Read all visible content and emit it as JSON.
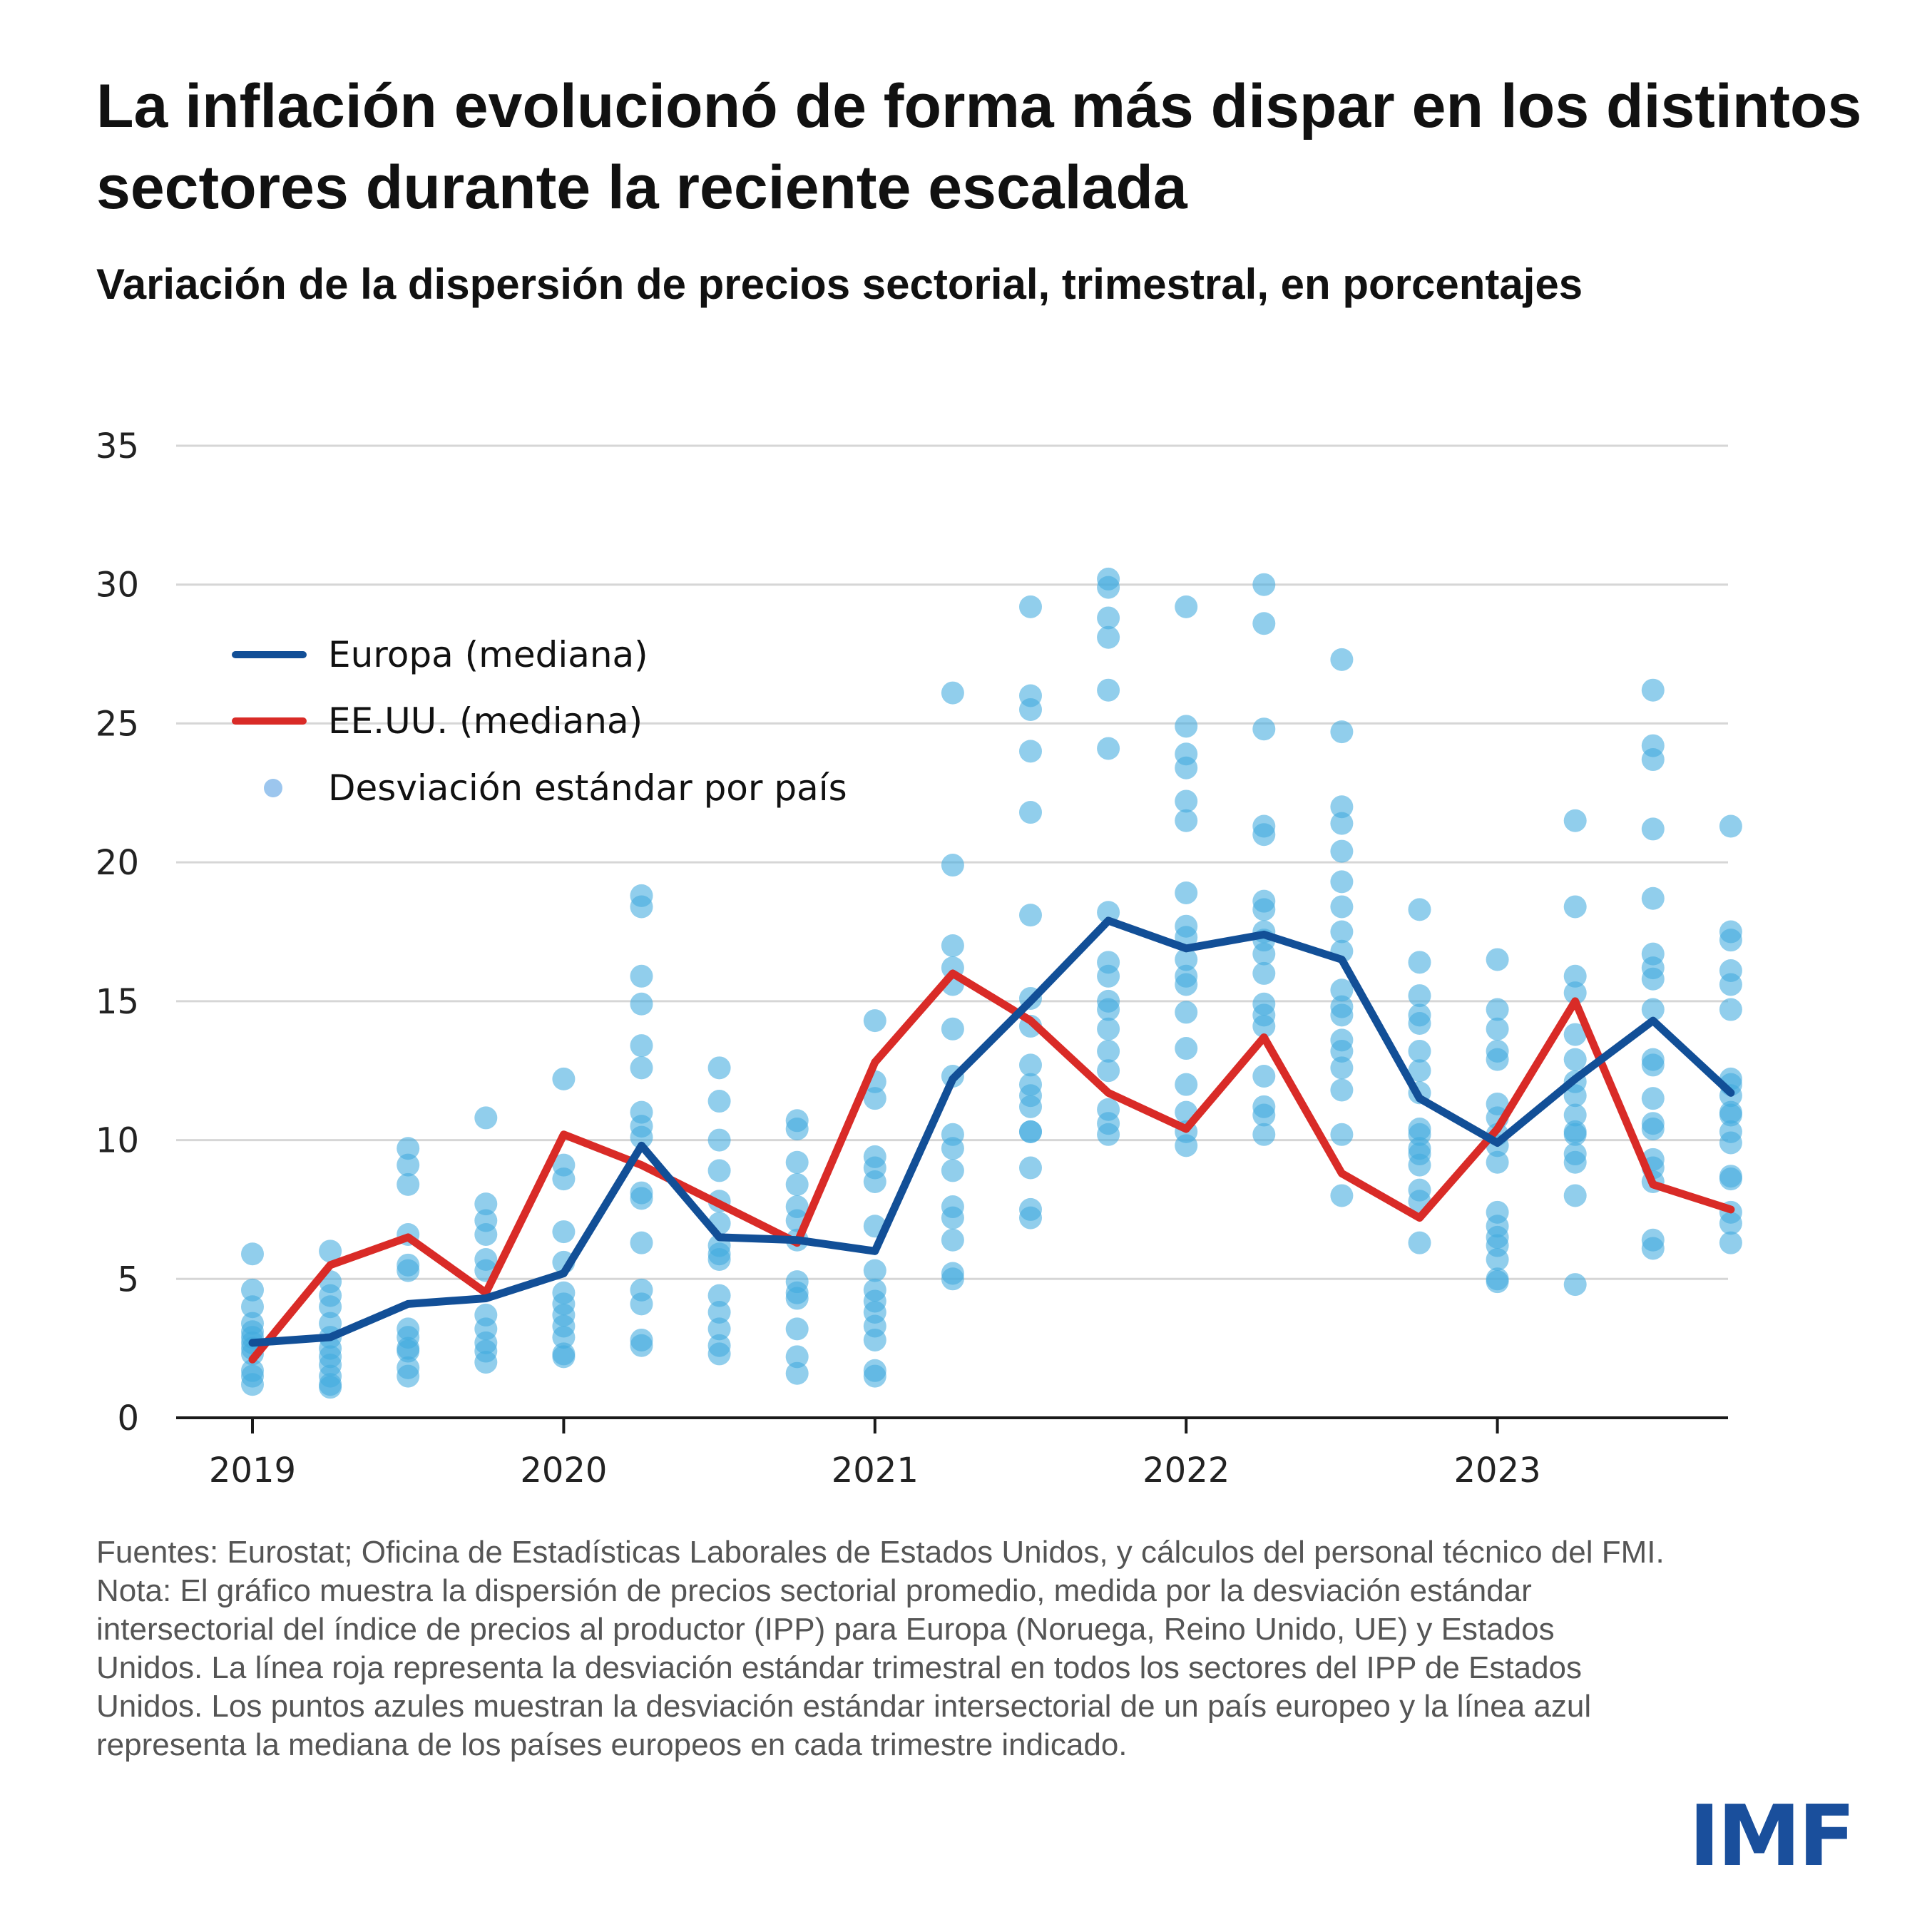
{
  "title": "La inflación evolucionó de forma más dispar en los distintos sectores durante la reciente escalada",
  "subtitle": "Variación de la dispersión de precios sectorial, trimestral, en porcentajes",
  "colors": {
    "europe": "#124f97",
    "us": "#d92b27",
    "dots": "#41aadf",
    "grid": "#d6d6d6",
    "logo": "#1a4f9c"
  },
  "chart_data": {
    "type": "line",
    "x_tick_labels": [
      "2019",
      "2020",
      "2021",
      "2022",
      "2023"
    ],
    "x": [
      "2019T1",
      "2019T2",
      "2019T3",
      "2019T4",
      "2020T1",
      "2020T2",
      "2020T3",
      "2020T4",
      "2021T1",
      "2021T2",
      "2021T3",
      "2021T4",
      "2022T1",
      "2022T2",
      "2022T3",
      "2022T4",
      "2023T1",
      "2023T2",
      "2023T3",
      "2023T4"
    ],
    "ylim": [
      0,
      35
    ],
    "y_ticks": [
      "0",
      "5",
      "10",
      "15",
      "20",
      "25",
      "30",
      "35"
    ],
    "grid": true,
    "legend_placement": "top-left",
    "series": [
      {
        "name": "Europa (mediana)",
        "type": "line",
        "values": [
          2.7,
          2.9,
          4.1,
          4.3,
          5.2,
          9.8,
          6.5,
          6.4,
          6.0,
          12.2,
          15.0,
          17.9,
          16.9,
          17.4,
          16.5,
          11.5,
          9.9,
          12.2,
          14.3,
          11.7
        ]
      },
      {
        "name": "EE.UU. (mediana)",
        "type": "line",
        "values": [
          2.1,
          5.5,
          6.5,
          4.5,
          10.2,
          9.1,
          7.7,
          6.3,
          12.8,
          16.0,
          14.3,
          11.7,
          10.4,
          13.7,
          8.8,
          7.2,
          10.4,
          15.0,
          8.4,
          7.5
        ]
      },
      {
        "name": "Desviación estándar por país",
        "type": "scatter",
        "values": [
          [
            5.9,
            4.6,
            4.0,
            3.4,
            3.1,
            2.9,
            2.7,
            2.5,
            2.3,
            1.7,
            1.5,
            1.2
          ],
          [
            6.0,
            4.9,
            4.4,
            4.0,
            3.4,
            2.9,
            2.5,
            2.2,
            1.9,
            1.5,
            1.2,
            1.1
          ],
          [
            9.7,
            9.1,
            8.4,
            6.6,
            5.5,
            5.3,
            3.2,
            2.9,
            2.5,
            2.4,
            1.8,
            1.5
          ],
          [
            10.8,
            7.7,
            7.1,
            6.6,
            5.7,
            5.3,
            3.7,
            3.2,
            2.7,
            2.4,
            2.0
          ],
          [
            12.2,
            9.1,
            8.6,
            6.7,
            5.6,
            4.5,
            4.1,
            3.7,
            3.3,
            2.9,
            2.3,
            2.2
          ],
          [
            18.8,
            18.4,
            15.9,
            14.9,
            13.4,
            12.6,
            11.0,
            10.5,
            10.1,
            8.1,
            7.9,
            6.3,
            4.6,
            4.1,
            2.8,
            2.6
          ],
          [
            12.6,
            11.4,
            10.0,
            8.9,
            7.8,
            7.0,
            6.2,
            5.9,
            5.7,
            4.4,
            3.8,
            3.2,
            2.6,
            2.3
          ],
          [
            10.7,
            10.4,
            9.2,
            8.4,
            7.6,
            7.1,
            6.4,
            4.9,
            4.5,
            4.3,
            3.2,
            2.2,
            1.6
          ],
          [
            14.3,
            12.1,
            11.5,
            9.4,
            9.0,
            8.5,
            6.9,
            5.3,
            4.6,
            4.2,
            3.8,
            3.3,
            2.8,
            1.7,
            1.5
          ],
          [
            26.1,
            19.9,
            17.0,
            16.2,
            15.6,
            14.0,
            12.3,
            10.2,
            9.7,
            8.9,
            7.6,
            7.2,
            6.4,
            5.2,
            5.0
          ],
          [
            29.2,
            26.0,
            25.5,
            24.0,
            21.8,
            18.1,
            15.1,
            14.1,
            12.7,
            12.0,
            11.6,
            11.2,
            10.3,
            10.3,
            9.0,
            7.5,
            7.2
          ],
          [
            30.2,
            29.9,
            28.8,
            28.1,
            26.2,
            24.1,
            18.2,
            16.4,
            15.9,
            15.0,
            14.7,
            14.0,
            13.2,
            12.5,
            11.1,
            10.6,
            10.2
          ],
          [
            29.2,
            24.9,
            23.9,
            23.4,
            22.2,
            21.5,
            18.9,
            17.7,
            17.3,
            16.5,
            15.9,
            15.6,
            14.6,
            13.3,
            12.0,
            11.0,
            10.3,
            9.8
          ],
          [
            30.0,
            28.6,
            24.8,
            21.3,
            21.0,
            18.6,
            18.3,
            17.5,
            17.2,
            16.7,
            16.0,
            14.9,
            14.5,
            14.1,
            12.3,
            11.2,
            10.9,
            10.2
          ],
          [
            27.3,
            24.7,
            22.0,
            21.4,
            20.4,
            19.3,
            18.4,
            17.5,
            16.8,
            15.4,
            14.8,
            14.5,
            13.6,
            13.2,
            12.6,
            11.8,
            10.2,
            8.0
          ],
          [
            18.3,
            16.4,
            15.2,
            14.5,
            14.2,
            13.2,
            12.5,
            11.7,
            10.4,
            10.2,
            9.7,
            9.5,
            9.1,
            8.2,
            7.8,
            6.3
          ],
          [
            16.5,
            14.7,
            14.0,
            13.2,
            12.9,
            11.3,
            10.8,
            10.2,
            9.8,
            9.2,
            7.4,
            6.9,
            6.5,
            6.2,
            5.7,
            5.0,
            4.9
          ],
          [
            21.5,
            18.4,
            15.9,
            15.3,
            13.8,
            12.9,
            12.1,
            11.6,
            10.9,
            10.3,
            10.2,
            9.5,
            9.2,
            8.0,
            4.8
          ],
          [
            26.2,
            24.2,
            23.7,
            21.2,
            18.7,
            16.7,
            16.2,
            15.8,
            14.7,
            12.9,
            12.7,
            11.5,
            10.6,
            10.4,
            9.3,
            9.0,
            8.5,
            6.4,
            6.1
          ],
          [
            21.3,
            17.5,
            17.2,
            16.1,
            15.6,
            14.7,
            12.2,
            12.0,
            11.6,
            11.0,
            10.9,
            10.3,
            9.9,
            8.7,
            8.6,
            7.4,
            7.0,
            6.3
          ]
        ]
      }
    ]
  },
  "footer": {
    "sources": "Fuentes: Eurostat; Oficina de Estadísticas Laborales de Estados Unidos, y cálculos del personal técnico del FMI.",
    "note": "Nota: El gráfico muestra la dispersión de precios sectorial promedio, medida por la desviación estándar intersectorial del índice de precios al productor (IPP) para Europa (Noruega, Reino Unido, UE) y Estados Unidos. La línea roja representa la desviación estándar trimestral en todos los sectores del IPP de Estados Unidos. Los puntos azules muestran la desviación estándar intersectorial de un país europeo y la línea azul representa la mediana de los países europeos en cada trimestre indicado."
  },
  "logo": "IMF"
}
